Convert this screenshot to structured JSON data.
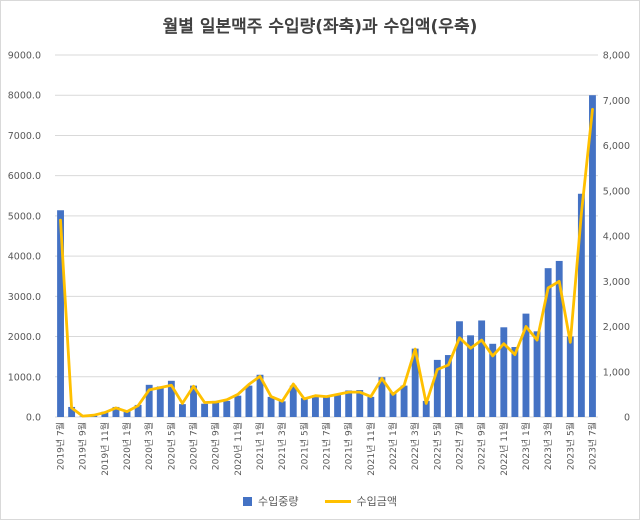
{
  "chart_data": {
    "type": "bar",
    "title": "월별 일본맥주 수입량(좌축)과 수입액(우축)",
    "ylim_left": [
      0,
      9000
    ],
    "ylim_right": [
      0,
      8000
    ],
    "y_ticks_left": [
      "0.0",
      "1000.0",
      "2000.0",
      "3000.0",
      "4000.0",
      "5000.0",
      "6000.0",
      "7000.0",
      "8000.0",
      "9000.0"
    ],
    "y_ticks_right": [
      "0",
      "1,000",
      "2,000",
      "3,000",
      "4,000",
      "5,000",
      "6,000",
      "7,000",
      "8,000"
    ],
    "x_tick_labels": [
      "2019년 7월",
      "2019년 9월",
      "2019년 11월",
      "2020년 1월",
      "2020년 3월",
      "2020년 5월",
      "2020년 7월",
      "2020년 9월",
      "2020년 11월",
      "2021년 1월",
      "2021년 3월",
      "2021년 5월",
      "2021년 7월",
      "2021년 9월",
      "2021년 11월",
      "2022년 1월",
      "2022년 3월",
      "2022년 5월",
      "2022년 7월",
      "2022년 9월",
      "2022년 11월",
      "2023년 1월",
      "2023년 3월",
      "2023년 5월",
      "2023년 7월"
    ],
    "categories": [
      "2019-07",
      "2019-08",
      "2019-09",
      "2019-10",
      "2019-11",
      "2019-12",
      "2020-01",
      "2020-02",
      "2020-03",
      "2020-04",
      "2020-05",
      "2020-06",
      "2020-07",
      "2020-08",
      "2020-09",
      "2020-10",
      "2020-11",
      "2020-12",
      "2021-01",
      "2021-02",
      "2021-03",
      "2021-04",
      "2021-05",
      "2021-06",
      "2021-07",
      "2021-08",
      "2021-09",
      "2021-10",
      "2021-11",
      "2021-12",
      "2022-01",
      "2022-02",
      "2022-03",
      "2022-04",
      "2022-05",
      "2022-06",
      "2022-07",
      "2022-08",
      "2022-09",
      "2022-10",
      "2022-11",
      "2022-12",
      "2023-01",
      "2023-02",
      "2023-03",
      "2023-04",
      "2023-05",
      "2023-06",
      "2023-07"
    ],
    "series": [
      {
        "name": "수입중량",
        "axis": "left",
        "type": "bar",
        "color": "#4472c4",
        "values": [
          5140,
          250,
          10,
          40,
          130,
          250,
          170,
          300,
          800,
          760,
          900,
          320,
          780,
          330,
          400,
          400,
          530,
          780,
          1050,
          500,
          390,
          780,
          470,
          540,
          500,
          560,
          660,
          670,
          500,
          990,
          620,
          780,
          1700,
          400,
          1420,
          1540,
          2380,
          2030,
          2400,
          1820,
          2230,
          1740,
          2570,
          2130,
          3700,
          3880,
          2000,
          5550,
          8000
        ]
      },
      {
        "name": "수입금액",
        "axis": "right",
        "type": "line",
        "color": "#ffc000",
        "values": [
          4350,
          200,
          20,
          40,
          100,
          200,
          120,
          250,
          600,
          650,
          700,
          300,
          680,
          320,
          330,
          380,
          500,
          720,
          900,
          450,
          350,
          730,
          400,
          470,
          450,
          500,
          550,
          550,
          450,
          850,
          500,
          700,
          1500,
          300,
          1050,
          1150,
          1750,
          1520,
          1700,
          1350,
          1620,
          1380,
          2000,
          1700,
          2850,
          3000,
          1650,
          4500,
          6800
        ]
      }
    ],
    "legend": "bottom",
    "grid": true
  }
}
